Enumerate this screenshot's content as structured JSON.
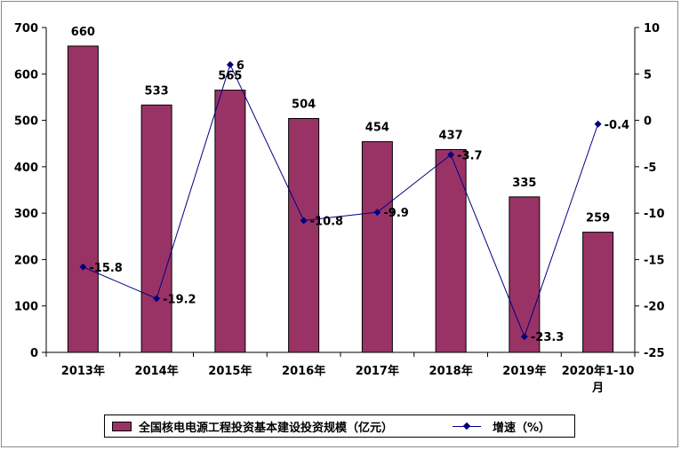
{
  "chart_data": {
    "type": "bar",
    "categories": [
      "2013年",
      "2014年",
      "2015年",
      "2016年",
      "2017年",
      "2018年",
      "2019年",
      "2020年1-10月"
    ],
    "category_lines": [
      [
        "2013年"
      ],
      [
        "2014年"
      ],
      [
        "2015年"
      ],
      [
        "2016年"
      ],
      [
        "2017年"
      ],
      [
        "2018年"
      ],
      [
        "2019年"
      ],
      [
        "2020年1-10",
        "月"
      ]
    ],
    "series": [
      {
        "name": "全国核电电源工程投资基本建设投资规模（亿元）",
        "type": "bar",
        "axis": "left",
        "values": [
          660,
          533,
          565,
          504,
          454,
          437,
          335,
          259
        ],
        "color": "#993366"
      },
      {
        "name": "增速（%）",
        "type": "line",
        "axis": "right",
        "values": [
          -15.8,
          -19.2,
          6,
          -10.8,
          -9.9,
          -3.7,
          -23.3,
          -0.4
        ],
        "color": "#000080"
      }
    ],
    "y_left": {
      "min": 0,
      "max": 700,
      "step": 100
    },
    "y_right": {
      "min": -25,
      "max": 10,
      "step": 5
    },
    "grid": false,
    "legend_position": "bottom"
  }
}
